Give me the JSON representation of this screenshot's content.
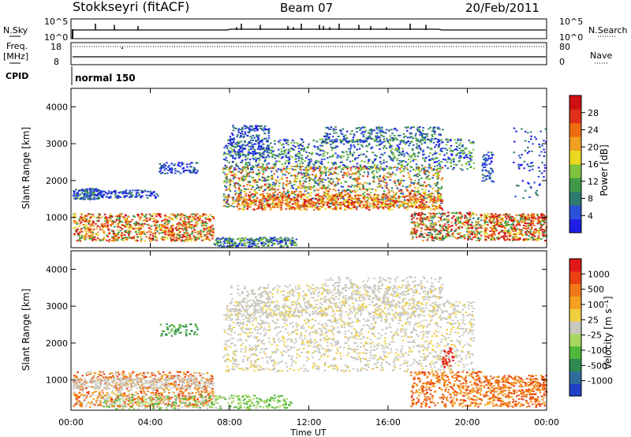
{
  "header": {
    "station": "Stokkseyri (fitACF)",
    "beam": "Beam 07",
    "date": "20/Feb/2011"
  },
  "nsky": {
    "label": "N.Sky",
    "tick_top": "10^5",
    "tick_bottom": "10^0",
    "right_label": "N.Search",
    "right_tick_top": "10^5",
    "right_tick_bottom": "10^0"
  },
  "freq": {
    "label_line1": "Freq.",
    "label_line2": "[MHz]",
    "tick_top": "18",
    "tick_bottom": "8",
    "right_label": "Nave",
    "right_tick_top": "80",
    "right_tick_bottom": "0"
  },
  "cpid": {
    "label": "CPID",
    "mode": "normal 150"
  },
  "time_axis": {
    "ticks": [
      "00:00",
      "04:00",
      "08:00",
      "12:00",
      "16:00",
      "20:00",
      "00:00"
    ],
    "label": "Time UT"
  },
  "chart_data": [
    {
      "type": "heatmap",
      "title": "",
      "xlabel": "Time UT",
      "ylabel": "Slant Range [km]",
      "x_ticks": [
        "00:00",
        "04:00",
        "08:00",
        "12:00",
        "16:00",
        "20:00",
        "00:00"
      ],
      "y_ticks": [
        1000,
        2000,
        3000,
        4000
      ],
      "ylim": [
        180,
        4500
      ],
      "colorbar": {
        "label": "Power [dB]",
        "ticks": [
          4,
          8,
          12,
          16,
          20,
          24,
          28
        ],
        "colors": [
          "#1e1ee6",
          "#2a4fd8",
          "#2f7a6f",
          "#3f9a4a",
          "#7fc43c",
          "#e8d820",
          "#f0a020",
          "#ee6a10",
          "#e0301a",
          "#d01010"
        ]
      }
    },
    {
      "type": "heatmap",
      "title": "",
      "xlabel": "Time UT",
      "ylabel": "Slant Range [km]",
      "x_ticks": [
        "00:00",
        "04:00",
        "08:00",
        "12:00",
        "16:00",
        "20:00",
        "00:00"
      ],
      "y_ticks": [
        1000,
        2000,
        3000,
        4000
      ],
      "ylim": [
        180,
        4500
      ],
      "colorbar": {
        "label": "Velocity [m s⁻¹]",
        "ticks": [
          "1000",
          "500",
          "100",
          "25",
          "-25",
          "-100",
          "-500",
          "-1000"
        ],
        "colors": [
          "#2040c8",
          "#2e6e9a",
          "#2e8a4e",
          "#4fb83a",
          "#a6d860",
          "#c8c8c0",
          "#f0d040",
          "#f4a020",
          "#f07818",
          "#e84010",
          "#e01818"
        ]
      }
    }
  ]
}
